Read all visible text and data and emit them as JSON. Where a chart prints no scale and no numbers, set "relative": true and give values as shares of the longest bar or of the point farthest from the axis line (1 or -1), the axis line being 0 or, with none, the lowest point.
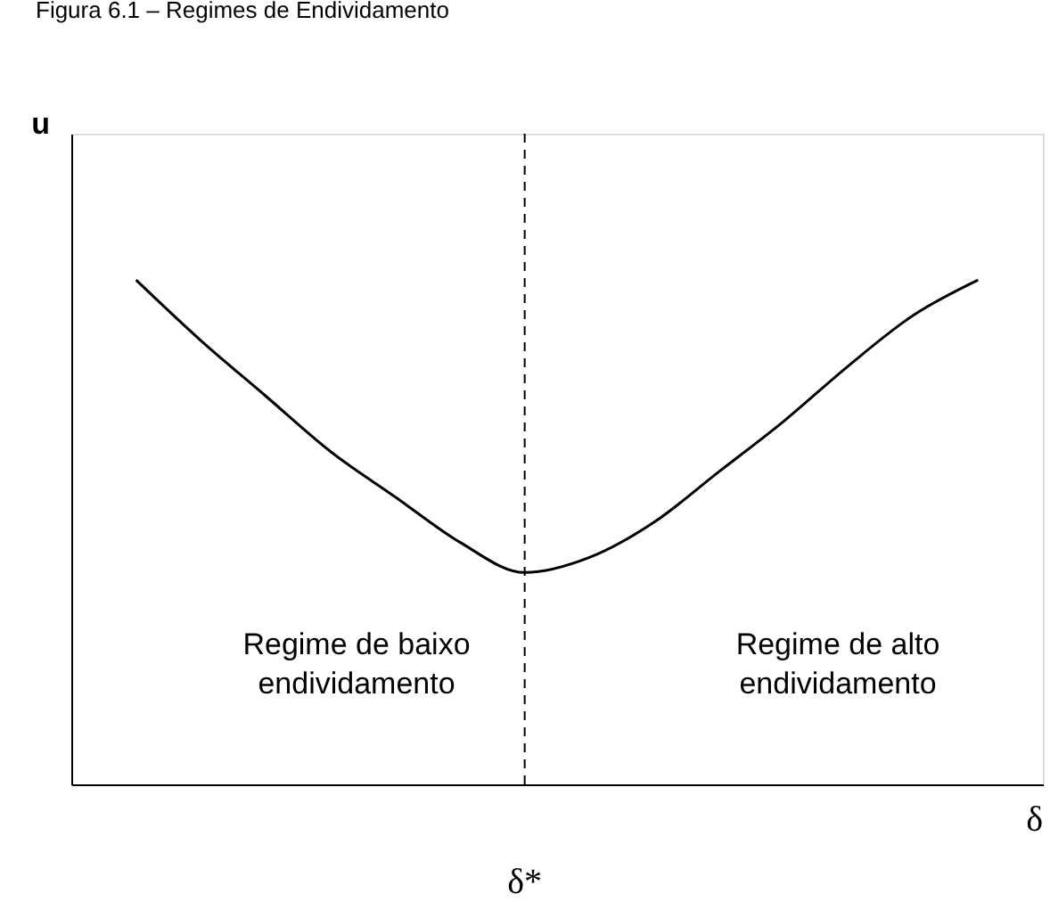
{
  "chart_data": {
    "type": "line",
    "title": "Figura 6.1 – Regimes de Endividamento",
    "xlabel": "δ",
    "ylabel": "u",
    "relative": true,
    "tick_labels": false,
    "grid": false,
    "marker": "none",
    "categories": [
      null,
      null,
      null,
      null,
      null,
      null,
      null,
      null,
      null,
      null,
      null,
      null,
      null,
      null
    ],
    "series": [
      {
        "color": "#000000",
        "values": [
          1,
          0.88,
          0.77,
          0.66,
          0.57,
          0.48,
          0.42,
          0.45,
          0.52,
          0.62,
          0.72,
          0.83,
          0.93,
          1
        ],
        "line_style": "solid"
      }
    ],
    "annotations": [
      {
        "text": "Regime de baixo endividamento"
      },
      {
        "text": "Regime de alto endividamento"
      },
      {
        "text": "δ*"
      }
    ]
  }
}
